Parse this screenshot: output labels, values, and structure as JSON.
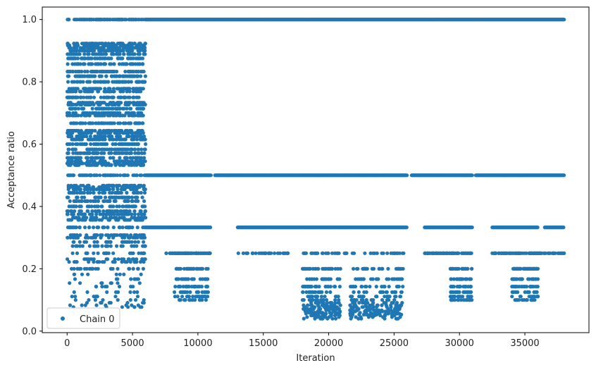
{
  "chart_data": {
    "type": "scatter",
    "xlabel": "Iteration",
    "ylabel": "Acceptance ratio",
    "xlim": [
      -1900,
      39900
    ],
    "ylim": [
      -0.005,
      1.04
    ],
    "xticks": [
      0,
      5000,
      10000,
      15000,
      20000,
      25000,
      30000,
      35000
    ],
    "yticks": [
      0.0,
      0.2,
      0.4,
      0.6,
      0.8,
      1.0
    ],
    "xtick_labels": [
      "0",
      "5000",
      "10000",
      "15000",
      "20000",
      "25000",
      "30000",
      "35000"
    ],
    "ytick_labels": [
      "0.0",
      "0.2",
      "0.4",
      "0.6",
      "0.8",
      "1.0"
    ],
    "grid": false,
    "legend_position": "lower-left",
    "series": [
      {
        "name": "Chain 0",
        "color": "#1f77b4",
        "marker": "circle",
        "n_iterations": 38000,
        "phases": [
          {
            "x_range": [
              0,
              6000
            ],
            "levels": [
              1.0,
              0.923,
              0.917,
              0.909,
              0.9,
              0.889,
              0.875,
              0.857,
              0.833,
              0.818,
              0.8,
              0.778,
              0.769,
              0.75,
              0.733,
              0.727,
              0.714,
              0.7,
              0.692,
              0.667,
              0.643,
              0.636,
              0.625,
              0.615,
              0.6,
              0.583,
              0.571,
              0.556,
              0.545,
              0.538,
              0.533,
              0.5,
              0.467,
              0.462,
              0.455,
              0.444,
              0.429,
              0.417,
              0.4,
              0.385,
              0.375,
              0.364,
              0.357,
              0.333,
              0.308,
              0.3,
              0.286,
              0.273,
              0.25,
              0.231,
              0.222,
              0.2,
              0.182,
              0.167,
              0.154,
              0.143,
              0.125,
              0.111,
              0.1,
              0.091,
              0.083,
              0.077
            ]
          },
          {
            "x_range": [
              6000,
              38000
            ],
            "levels": [
              1.0,
              0.5,
              0.333,
              0.25,
              0.2,
              0.167,
              0.143,
              0.125,
              0.111,
              0.1,
              0.091,
              0.083,
              0.077,
              0.071,
              0.067,
              0.063,
              0.059,
              0.056,
              0.053,
              0.05,
              0.045,
              0.04
            ]
          }
        ],
        "gaps_at_0.5": [
          [
            11000,
            11300
          ],
          [
            26000,
            26300
          ],
          [
            31000,
            31200
          ]
        ],
        "gaps_at_0.333": [
          [
            11000,
            13000
          ],
          [
            26000,
            27300
          ],
          [
            31000,
            32500
          ],
          [
            36000,
            36500
          ]
        ]
      }
    ]
  }
}
